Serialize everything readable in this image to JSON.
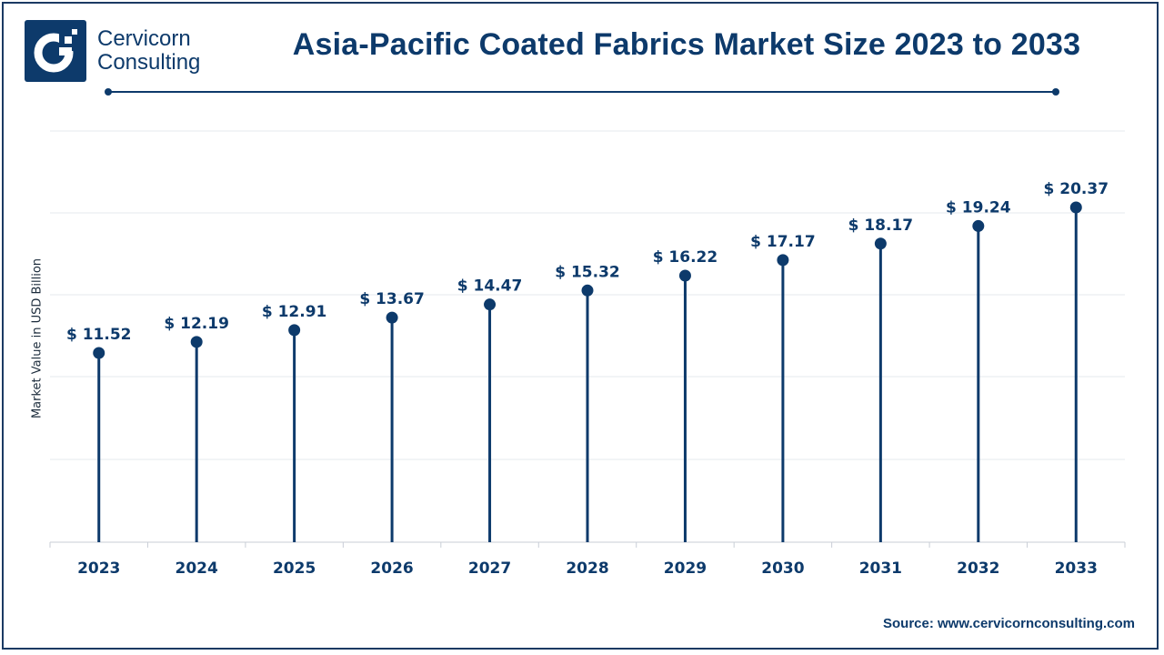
{
  "brand": {
    "line1": "Cervicorn",
    "line2": "Consulting"
  },
  "source_text": "Source: www.cervicornconsulting.com",
  "colors": {
    "primary": "#0d3a6b",
    "grid": "#e6e9ee",
    "axis": "#c9ced6"
  },
  "chart_data": {
    "type": "lollipop",
    "title": "Asia-Pacific Coated Fabrics Market Size 2023 to 2033",
    "ylabel": "Market Value in USD Billion",
    "xlabel": "",
    "categories": [
      "2023",
      "2024",
      "2025",
      "2026",
      "2027",
      "2028",
      "2029",
      "2030",
      "2031",
      "2032",
      "2033"
    ],
    "values": [
      11.52,
      12.19,
      12.91,
      13.67,
      14.47,
      15.32,
      16.22,
      17.17,
      18.17,
      19.24,
      20.37
    ],
    "value_labels": [
      "$ 11.52",
      "$ 12.19",
      "$ 12.91",
      "$ 13.67",
      "$ 14.47",
      "$ 15.32",
      "$ 16.22",
      "$ 17.17",
      "$ 18.17",
      "$ 19.24",
      "$ 20.37"
    ],
    "grid": true,
    "legend": "none"
  }
}
